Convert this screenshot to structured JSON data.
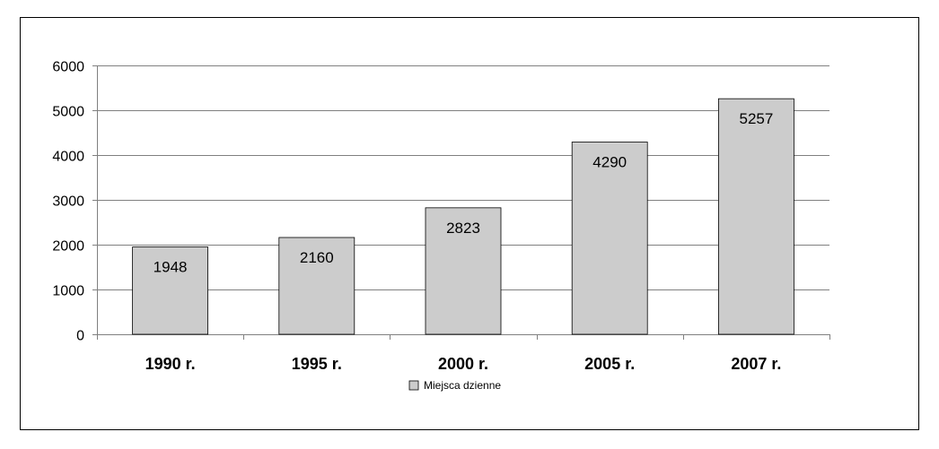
{
  "chart_data": {
    "type": "bar",
    "categories": [
      "1990 r.",
      "1995 r.",
      "2000 r.",
      "2005 r.",
      "2007 r."
    ],
    "series": [
      {
        "name": "Miejsca dzienne",
        "values": [
          1948,
          2160,
          2823,
          4290,
          5257
        ],
        "color": "#cccccc"
      }
    ],
    "ylim": [
      0,
      6000
    ],
    "yticks": [
      0,
      1000,
      2000,
      3000,
      4000,
      5000,
      6000
    ],
    "grid": true,
    "legend_position": "bottom",
    "data_labels": true
  }
}
